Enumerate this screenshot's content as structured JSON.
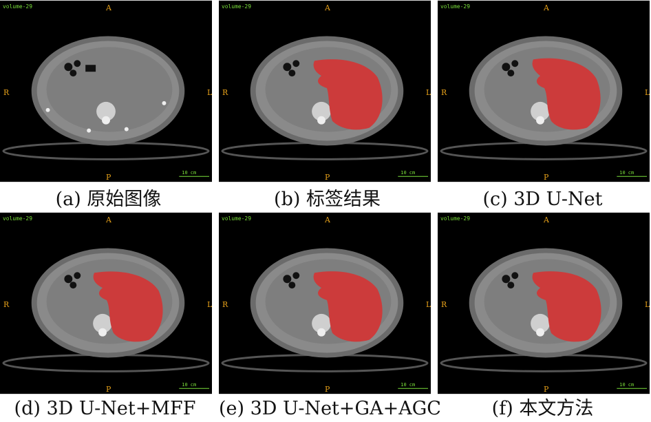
{
  "overlay": {
    "volume_text": "volume-29",
    "top_marker": "A",
    "left_marker": "R",
    "right_marker": "L",
    "bottom_marker": "P",
    "scale_text": "10 cm"
  },
  "colors": {
    "background": "#000000",
    "segmentation": "#cc3b3b",
    "overlay_orange": "#e8a21a",
    "overlay_green": "#7adf3a"
  },
  "panels": [
    {
      "caption": "(a) 原始图像",
      "has_mask": false
    },
    {
      "caption": "(b) 标签结果",
      "has_mask": true
    },
    {
      "caption": "(c) 3D U-Net",
      "has_mask": true
    },
    {
      "caption": "(d) 3D U-Net+MFF",
      "has_mask": true
    },
    {
      "caption": "(e) 3D U-Net+GA+AGC",
      "has_mask": true
    },
    {
      "caption": "(f) 本文方法",
      "has_mask": true
    }
  ]
}
